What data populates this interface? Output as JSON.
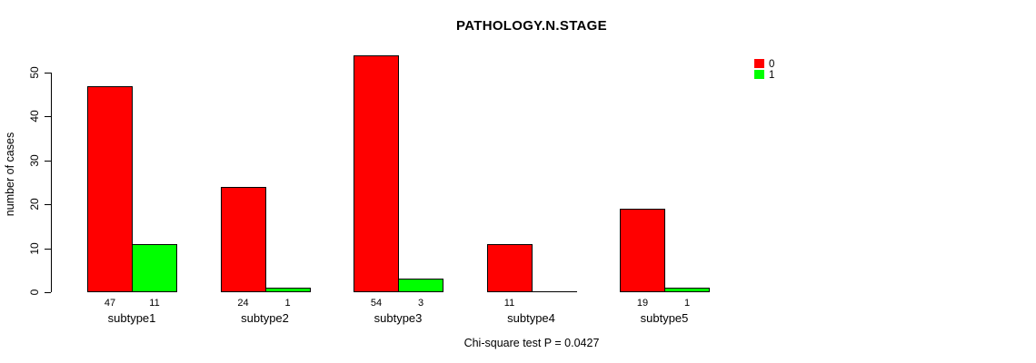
{
  "chart_data": {
    "type": "bar",
    "title": "PATHOLOGY.N.STAGE",
    "xlabel": "",
    "ylabel": "number of cases",
    "categories": [
      "subtype1",
      "subtype2",
      "subtype3",
      "subtype4",
      "subtype5"
    ],
    "series": [
      {
        "name": "0",
        "color": "#ff0000",
        "values": [
          47,
          24,
          54,
          11,
          19
        ]
      },
      {
        "name": "1",
        "color": "#00ff00",
        "values": [
          11,
          1,
          3,
          0,
          1
        ]
      }
    ],
    "yticks": [
      "0",
      "10",
      "20",
      "30",
      "40",
      "50"
    ],
    "ylim": [
      0,
      55
    ],
    "grid": false,
    "legend_position": "top-right",
    "bar_value_labels_shown": true,
    "annotation": "Chi-square test P = 0.0427"
  }
}
